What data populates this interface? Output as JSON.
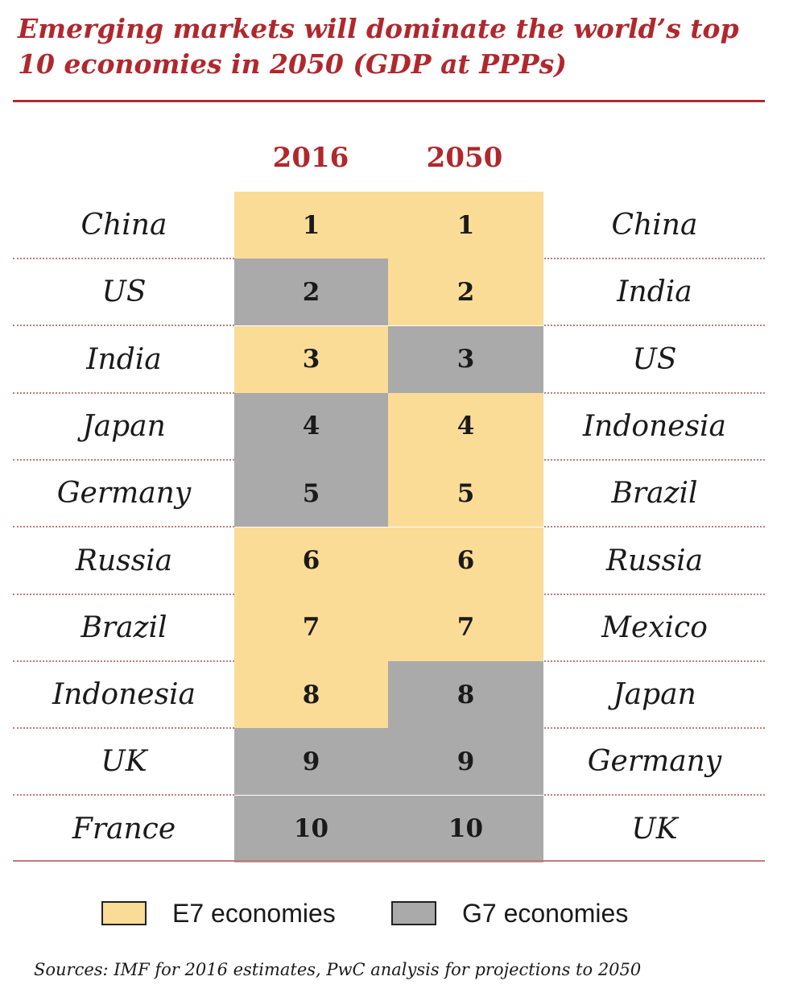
{
  "title_line1": "Emerging markets will dominate the world’s top",
  "title_line2": "10 economies in 2050 (GDP at PPPs)",
  "source": "Sources: IMF for 2016 estimates, PwC analysis for projections to 2050",
  "colors": {
    "accent": "#b0282d",
    "e7": "#fbdc96",
    "g7": "#aaaaaa"
  },
  "chart_data": {
    "type": "table",
    "title": "Emerging markets will dominate the world’s top 10 economies in 2050 (GDP at PPPs)",
    "columns": [
      "2016",
      "2050"
    ],
    "rows": [
      {
        "rank": "1",
        "left": "China",
        "left_group": "e7",
        "right": "China",
        "right_group": "e7"
      },
      {
        "rank": "2",
        "left": "US",
        "left_group": "g7",
        "right": "India",
        "right_group": "e7"
      },
      {
        "rank": "3",
        "left": "India",
        "left_group": "e7",
        "right": "US",
        "right_group": "g7"
      },
      {
        "rank": "4",
        "left": "Japan",
        "left_group": "g7",
        "right": "Indonesia",
        "right_group": "e7"
      },
      {
        "rank": "5",
        "left": "Germany",
        "left_group": "g7",
        "right": "Brazil",
        "right_group": "e7"
      },
      {
        "rank": "6",
        "left": "Russia",
        "left_group": "e7",
        "right": "Russia",
        "right_group": "e7"
      },
      {
        "rank": "7",
        "left": "Brazil",
        "left_group": "e7",
        "right": "Mexico",
        "right_group": "e7"
      },
      {
        "rank": "8",
        "left": "Indonesia",
        "left_group": "e7",
        "right": "Japan",
        "right_group": "g7"
      },
      {
        "rank": "9",
        "left": "UK",
        "left_group": "g7",
        "right": "Germany",
        "right_group": "g7"
      },
      {
        "rank": "10",
        "left": "France",
        "left_group": "g7",
        "right": "UK",
        "right_group": "g7"
      }
    ],
    "legend": [
      {
        "key": "e7",
        "label": "E7 economies"
      },
      {
        "key": "g7",
        "label": "G7 economies"
      }
    ],
    "legend_position": "bottom"
  }
}
